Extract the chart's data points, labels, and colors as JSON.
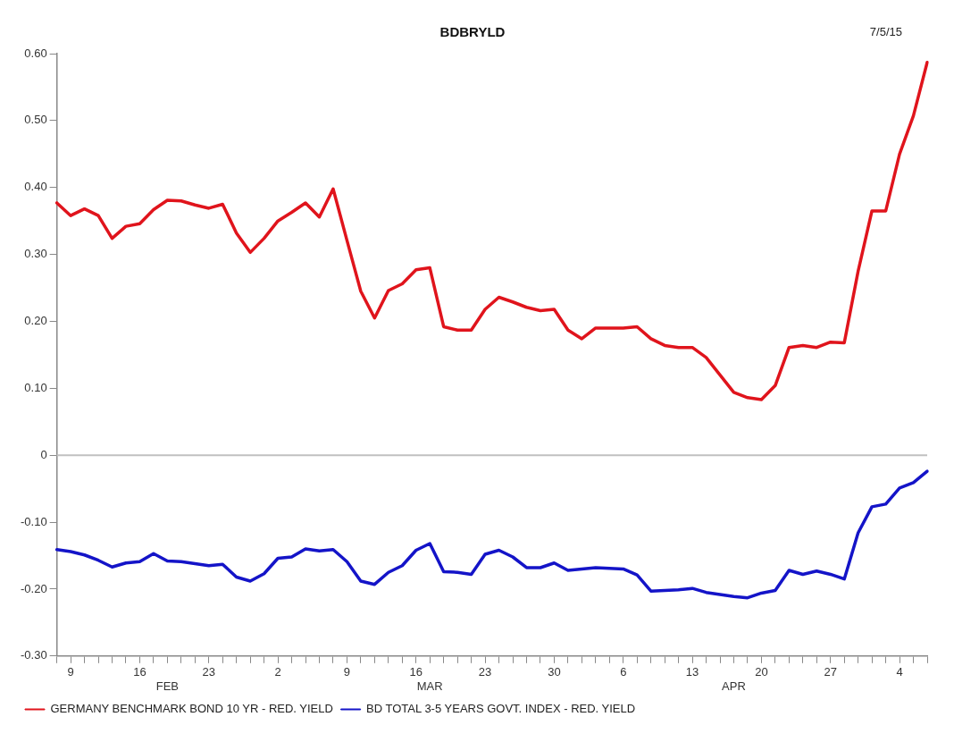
{
  "chart_data": {
    "type": "line",
    "title": "BDBRYLD",
    "annotations": [
      "7/5/15"
    ],
    "categories": [
      null,
      "9",
      null,
      null,
      null,
      null,
      "16",
      null,
      "\nFEB",
      null,
      null,
      "23",
      null,
      null,
      null,
      null,
      "2",
      null,
      null,
      null,
      null,
      "9",
      null,
      null,
      null,
      null,
      "16",
      "\nMAR",
      null,
      null,
      null,
      "23",
      null,
      null,
      null,
      null,
      "30",
      null,
      null,
      null,
      null,
      "6",
      null,
      null,
      null,
      null,
      "13",
      null,
      null,
      "\nAPR",
      null,
      "20",
      null,
      null,
      null,
      null,
      "27",
      null,
      null,
      null,
      null,
      "4",
      null,
      null
    ],
    "series": [
      {
        "name": "GERMANY BENCHMARK BOND 10 YR - RED. YIELD",
        "color": "#e0141c",
        "values": [
          0.377,
          0.358,
          0.368,
          0.358,
          0.324,
          0.342,
          0.346,
          0.367,
          0.381,
          0.38,
          0.374,
          0.369,
          0.375,
          0.332,
          0.303,
          0.324,
          0.35,
          0.363,
          0.377,
          0.356,
          0.398,
          0.321,
          0.245,
          0.205,
          0.246,
          0.256,
          0.277,
          0.28,
          0.192,
          0.187,
          0.187,
          0.218,
          0.236,
          0.229,
          0.221,
          0.216,
          0.218,
          0.187,
          0.174,
          0.19,
          0.19,
          0.19,
          0.192,
          0.174,
          0.164,
          0.161,
          0.161,
          0.146,
          0.12,
          0.094,
          0.086,
          0.083,
          0.104,
          0.161,
          0.164,
          0.161,
          0.169,
          0.168,
          0.275,
          0.365,
          0.365,
          0.45,
          0.507,
          0.587
        ]
      },
      {
        "name": "BD TOTAL 3-5 YEARS GOVT. INDEX - RED. YIELD",
        "color": "#1414c8",
        "values": [
          -0.141,
          -0.144,
          -0.149,
          -0.157,
          -0.167,
          -0.161,
          -0.159,
          -0.147,
          -0.158,
          -0.159,
          -0.162,
          -0.165,
          -0.163,
          -0.182,
          -0.188,
          -0.177,
          -0.154,
          -0.152,
          -0.14,
          -0.143,
          -0.141,
          -0.159,
          -0.188,
          -0.193,
          -0.175,
          -0.165,
          -0.142,
          -0.132,
          -0.174,
          -0.175,
          -0.178,
          -0.148,
          -0.142,
          -0.152,
          -0.168,
          -0.168,
          -0.161,
          -0.172,
          -0.17,
          -0.168,
          -0.169,
          -0.17,
          -0.179,
          -0.203,
          -0.202,
          -0.201,
          -0.199,
          -0.205,
          -0.208,
          -0.211,
          -0.213,
          -0.206,
          -0.202,
          -0.172,
          -0.178,
          -0.173,
          -0.178,
          -0.185,
          -0.116,
          -0.077,
          -0.073,
          -0.049,
          -0.041,
          -0.024
        ]
      }
    ],
    "ylim": [
      -0.3,
      0.6
    ],
    "yticks": [
      {
        "value": -0.3,
        "label": "-0.30"
      },
      {
        "value": -0.2,
        "label": "-0.20"
      },
      {
        "value": -0.1,
        "label": "-0.10"
      },
      0,
      {
        "value": 0.1,
        "label": "0.10"
      },
      {
        "value": 0.2,
        "label": "0.20"
      },
      {
        "value": 0.3,
        "label": "0.30"
      },
      {
        "value": 0.4,
        "label": "0.40"
      },
      {
        "value": 0.5,
        "label": "0.50"
      },
      {
        "value": 0.6,
        "label": "0.60"
      }
    ],
    "ref_lines": [
      {
        "axis": "y",
        "value": 0,
        "color": "#c0c0c0"
      }
    ],
    "legend": "bottom left",
    "marker": "none",
    "line_style": "solid"
  }
}
